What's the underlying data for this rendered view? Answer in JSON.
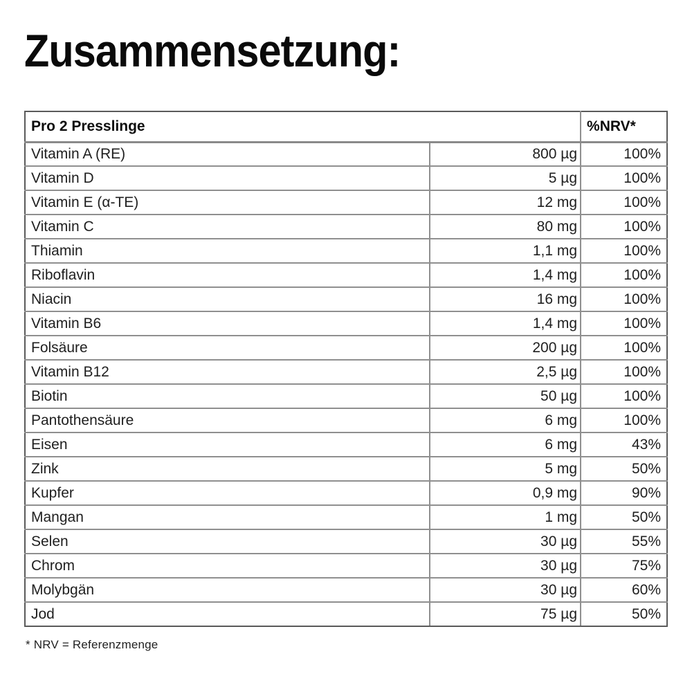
{
  "page": {
    "title": "Zusammensetzung:",
    "footnote": "* NRV = Referenzmenge"
  },
  "table": {
    "header": {
      "product": "Pro 2 Presslinge",
      "nrv": "%NRV*"
    },
    "rows": [
      {
        "name": "Vitamin A (RE)",
        "amount": "800 µg",
        "nrv": "100%"
      },
      {
        "name": "Vitamin D",
        "amount": "5 µg",
        "nrv": "100%"
      },
      {
        "name": "Vitamin E (α-TE)",
        "amount": "12 mg",
        "nrv": "100%"
      },
      {
        "name": "Vitamin C",
        "amount": "80 mg",
        "nrv": "100%"
      },
      {
        "name": "Thiamin",
        "amount": "1,1 mg",
        "nrv": "100%"
      },
      {
        "name": "Riboflavin",
        "amount": "1,4 mg",
        "nrv": "100%"
      },
      {
        "name": "Niacin",
        "amount": "16 mg",
        "nrv": "100%"
      },
      {
        "name": "Vitamin B6",
        "amount": "1,4 mg",
        "nrv": "100%"
      },
      {
        "name": "Folsäure",
        "amount": "200 µg",
        "nrv": "100%"
      },
      {
        "name": "Vitamin B12",
        "amount": "2,5 µg",
        "nrv": "100%"
      },
      {
        "name": "Biotin",
        "amount": "50 µg",
        "nrv": "100%"
      },
      {
        "name": "Pantothensäure",
        "amount": "6 mg",
        "nrv": "100%"
      },
      {
        "name": "Eisen",
        "amount": "6 mg",
        "nrv": "43%"
      },
      {
        "name": "Zink",
        "amount": "5 mg",
        "nrv": "50%"
      },
      {
        "name": "Kupfer",
        "amount": "0,9 mg",
        "nrv": "90%"
      },
      {
        "name": "Mangan",
        "amount": "1 mg",
        "nrv": "50%"
      },
      {
        "name": "Selen",
        "amount": "30 µg",
        "nrv": "55%"
      },
      {
        "name": "Chrom",
        "amount": "30 µg",
        "nrv": "75%"
      },
      {
        "name": "Molybgän",
        "amount": "30 µg",
        "nrv": "60%"
      },
      {
        "name": "Jod",
        "amount": "75 µg",
        "nrv": "50%"
      }
    ]
  }
}
